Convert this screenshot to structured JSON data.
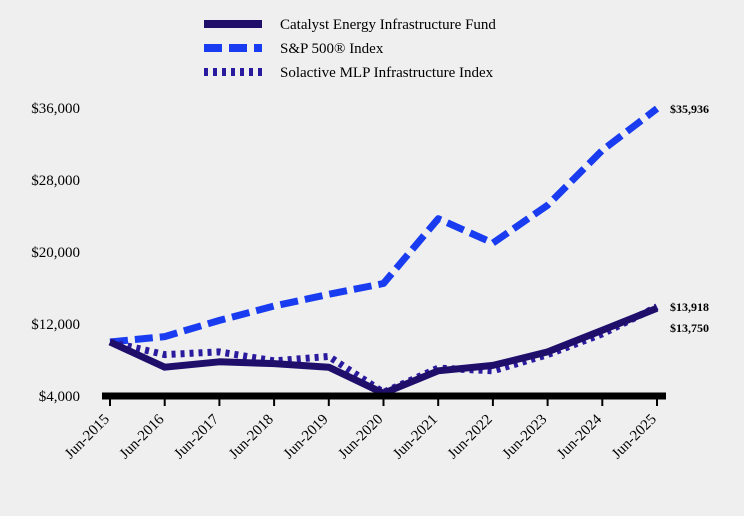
{
  "chart_data": {
    "type": "line",
    "title": "",
    "xlabel": "",
    "ylabel": "",
    "categories": [
      "Jun-2015",
      "Jun-2016",
      "Jun-2017",
      "Jun-2018",
      "Jun-2019",
      "Jun-2020",
      "Jun-2021",
      "Jun-2022",
      "Jun-2023",
      "Jun-2024",
      "Jun-2025"
    ],
    "ylim": [
      4000,
      36000
    ],
    "y_ticks": [
      4000,
      12000,
      20000,
      28000,
      36000
    ],
    "y_tick_labels": [
      "$4,000",
      "$12,000",
      "$20,000",
      "$28,000",
      "$36,000"
    ],
    "grid": false,
    "legend_position": "top",
    "series": [
      {
        "name": "Catalyst Energy Infrastructure Fund",
        "color": "#1f0f6b",
        "dash": "solid",
        "values": [
          10000,
          7200,
          7800,
          7600,
          7200,
          4300,
          6800,
          7400,
          8900,
          11300,
          13750
        ],
        "end_label": "$13,750"
      },
      {
        "name": "S&P 500® Index",
        "color": "#1a3cf0",
        "dash": "dashed",
        "values": [
          10000,
          10600,
          12400,
          14000,
          15300,
          16500,
          23700,
          21000,
          25200,
          31300,
          35936
        ],
        "end_label": "$35,936"
      },
      {
        "name": "Solactive MLP Infrastructure Index",
        "color": "#2a1a9e",
        "dash": "dotted",
        "values": [
          10000,
          8600,
          8900,
          7900,
          8400,
          4400,
          7100,
          6800,
          8600,
          10900,
          13918
        ],
        "end_label": "$13,918"
      }
    ]
  }
}
